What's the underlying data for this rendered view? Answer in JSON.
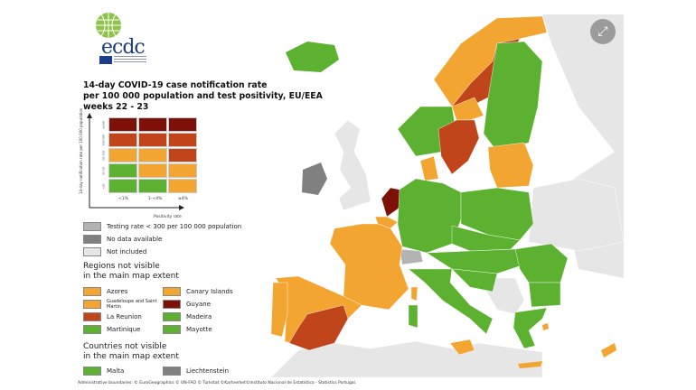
{
  "logo": {
    "text": "ecdc"
  },
  "title": {
    "line1": "14-day COVID-19 case notification rate",
    "line2": "per 100 000 population and test positivity, EU/EEA",
    "line3": "weeks 22 - 23"
  },
  "matrix": {
    "y_axis_label": "14-day notification rate per 100 000 population",
    "x_axis_label": "Positivity rate",
    "rows": [
      "≥500",
      "150-500",
      "50-150",
      "25-50",
      "<25"
    ],
    "cols": [
      "<1%",
      "1-<4%",
      "≥4%"
    ],
    "colors": [
      [
        "#7d1007",
        "#7d1007",
        "#7d1007"
      ],
      [
        "#c0451b",
        "#c0451b",
        "#c0451b"
      ],
      [
        "#f2a531",
        "#f2a531",
        "#c0451b"
      ],
      [
        "#5db130",
        "#f2a531",
        "#f2a531"
      ],
      [
        "#5db130",
        "#5db130",
        "#f2a531"
      ]
    ]
  },
  "legend": {
    "items": [
      {
        "label": "Testing rate < 300 per 100 000 population",
        "color": "#b3b3b3"
      },
      {
        "label": "No data available",
        "color": "#808080"
      },
      {
        "label": "Not included",
        "color": "#e6e6e6"
      }
    ],
    "regions_header_1": "Regions not visible",
    "regions_header_2": "in the main map extent",
    "regions": [
      {
        "label": "Azores",
        "color": "#f2a531"
      },
      {
        "label": "Canary Islands",
        "color": "#f2a531"
      },
      {
        "label": "Guadeloupe and Saint Martin",
        "color": "#f2a531"
      },
      {
        "label": "Guyane",
        "color": "#7d1007"
      },
      {
        "label": "La Reunion",
        "color": "#c0451b"
      },
      {
        "label": "Madeira",
        "color": "#5db130"
      },
      {
        "label": "Martinique",
        "color": "#5db130"
      },
      {
        "label": "Mayotte",
        "color": "#5db130"
      }
    ],
    "countries_header_1": "Countries not visible",
    "countries_header_2": "in the main map extent",
    "countries": [
      {
        "label": "Malta",
        "color": "#5db130"
      },
      {
        "label": "Liechtenstein",
        "color": "#808080"
      }
    ]
  },
  "footer": "Administrative boundaries: © EuroGeographics © UN-FAO © Turkstat ©Kartverket©Instituto Nacional de Estatística - Statistics Portugal.",
  "expand_icon": "expand-arrows-icon",
  "colors": {
    "green": "#5db130",
    "orange": "#f2a531",
    "red": "#c0451b",
    "dark_red": "#7d1007",
    "grey": "#808080",
    "light_grey": "#e6e6e6"
  }
}
